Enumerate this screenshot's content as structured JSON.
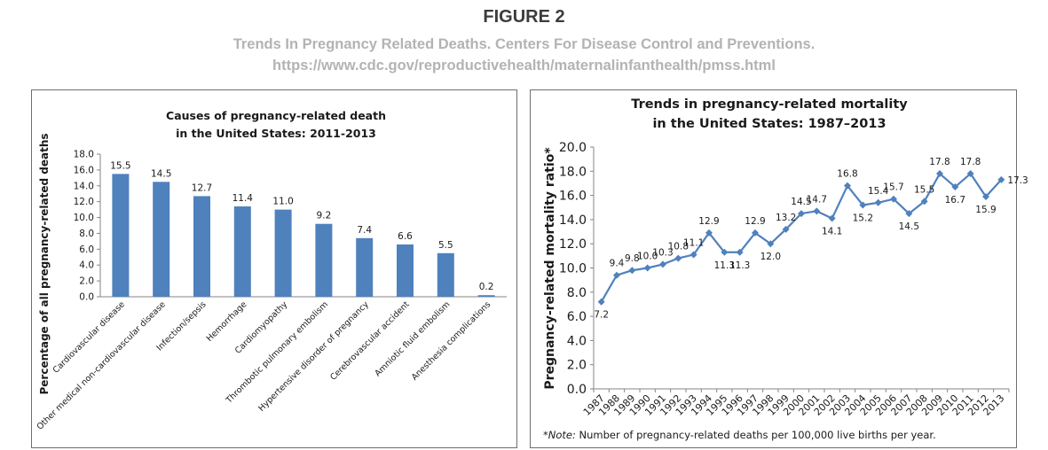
{
  "figure": {
    "title": "FIGURE 2",
    "subtitle_line1": "Trends In Pregnancy Related Deaths. Centers For Disease Control and Preventions.",
    "subtitle_line2": "https://www.cdc.gov/reproductivehealth/maternalinfanthealth/pmss.html"
  },
  "chart_data": [
    {
      "type": "bar",
      "title_lines": [
        "Causes of pregnancy-related death",
        "in the United States: 2011-2013"
      ],
      "ylabel": "Percentage of all pregnancy-related deaths",
      "xlabel": "",
      "categories": [
        "Cardiovascular disease",
        "Other medical non-cardiovascular disease",
        "Infection/sepsis",
        "Hemorrhage",
        "Cardiomyopathy",
        "Thrombotic pulmonary embolism",
        "Hypertensive disorder of pregnancy",
        "Cerebrovascular accident",
        "Amniotic fluid embolism",
        "Anesthesia complications"
      ],
      "values": [
        15.5,
        14.5,
        12.7,
        11.4,
        11.0,
        9.2,
        7.4,
        6.6,
        5.5,
        0.2
      ],
      "value_labels": [
        "15.5",
        "14.5",
        "12.7",
        "11.4",
        "11.0",
        "9.2",
        "7.4",
        "6.6",
        "5.5",
        "0.2"
      ],
      "yticks": [
        "0.0",
        "2.0",
        "4.0",
        "6.0",
        "8.0",
        "10.0",
        "12.0",
        "14.0",
        "16.0",
        "18.0"
      ],
      "ylim": [
        0,
        18
      ],
      "bar_color": "#4f81bd",
      "grid": false,
      "legend": "none"
    },
    {
      "type": "line",
      "title_lines": [
        "Trends in pregnancy-related mortality",
        "in the United States: 1987–2013"
      ],
      "ylabel": "Pregnancy-related mortality ratio*",
      "xlabel": "",
      "x": [
        "1987",
        "1988",
        "1989",
        "1990",
        "1991",
        "1992",
        "1993",
        "1994",
        "1995",
        "1996",
        "1997",
        "1998",
        "1999",
        "2000",
        "2001",
        "2002",
        "2003",
        "2004",
        "2005",
        "2006",
        "2007",
        "2008",
        "2009",
        "2010",
        "2011",
        "2012",
        "2013"
      ],
      "values": [
        7.2,
        9.4,
        9.8,
        10.0,
        10.3,
        10.8,
        11.1,
        12.9,
        11.3,
        11.3,
        12.9,
        12.0,
        13.2,
        14.5,
        14.7,
        14.1,
        16.8,
        15.2,
        15.4,
        15.7,
        14.5,
        15.5,
        17.8,
        16.7,
        17.8,
        15.9,
        17.3
      ],
      "value_labels": [
        "7.2",
        "9.4",
        "9.8",
        "10.0",
        "10.3",
        "10.8",
        "11.1",
        "12.9",
        "11.3",
        "11.3",
        "12.9",
        "12.0",
        "13.2",
        "14.5",
        "14.7",
        "14.1",
        "16.8",
        "15.2",
        "15.4",
        "15.7",
        "14.5",
        "15.5",
        "17.8",
        "16.7",
        "17.8",
        "15.9",
        "17.3"
      ],
      "yticks": [
        "0.0",
        "2.0",
        "4.0",
        "6.0",
        "8.0",
        "10.0",
        "12.0",
        "14.0",
        "16.0",
        "18.0",
        "20.0"
      ],
      "ylim": [
        0,
        20
      ],
      "line_color": "#4f81bd",
      "grid": false,
      "legend": "none",
      "note_label": "*Note:",
      "note_text": " Number of pregnancy-related deaths per 100,000 live births per year."
    }
  ]
}
